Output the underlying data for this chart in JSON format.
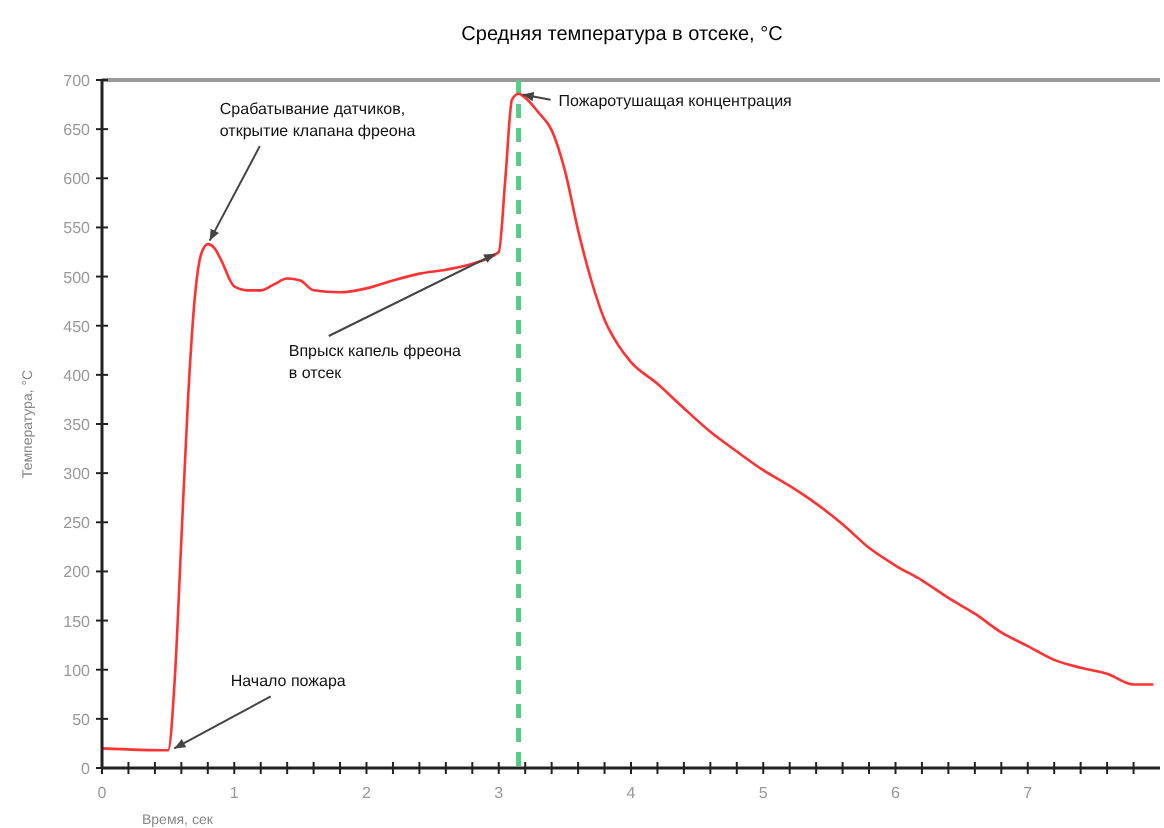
{
  "chart_data": {
    "type": "line",
    "title": "Средняя температура в отсеке, °C",
    "xlabel": "Время, сек",
    "ylabel": "Температура, °C",
    "x": [
      0,
      0.5,
      0.55,
      0.6,
      0.65,
      0.7,
      0.75,
      0.8,
      0.85,
      0.9,
      1.0,
      1.1,
      1.2,
      1.3,
      1.4,
      1.5,
      1.6,
      1.8,
      2.0,
      2.2,
      2.4,
      2.6,
      2.8,
      3.0,
      3.05,
      3.1,
      3.15,
      3.2,
      3.3,
      3.4,
      3.5,
      3.6,
      3.7,
      3.8,
      3.9,
      4.0,
      4.2,
      4.4,
      4.6,
      4.8,
      5.0,
      5.2,
      5.4,
      5.6,
      5.8,
      6.0,
      6.2,
      6.4,
      6.6,
      6.8,
      7.0,
      7.2,
      7.4,
      7.6,
      7.8,
      7.95
    ],
    "series": [
      {
        "color": "#ff3333",
        "values": [
          20,
          18,
          90,
          232,
          374,
          476,
          523,
          533,
          529,
          517,
          490,
          486,
          486,
          492,
          498,
          496,
          486,
          484,
          488,
          496,
          503,
          507,
          513,
          525,
          600,
          680,
          686,
          682,
          667,
          649,
          608,
          547,
          496,
          456,
          431,
          413,
          391,
          366,
          342,
          322,
          303,
          287,
          269,
          248,
          224,
          206,
          191,
          173,
          157,
          138,
          124,
          110,
          102,
          96,
          85,
          85
        ]
      }
    ],
    "xlim": [
      0,
      8
    ],
    "ylim": [
      0,
      700
    ],
    "xticks": [
      0,
      {
        "value": 0.2,
        "label": null
      },
      {
        "value": 0.4,
        "label": null
      },
      {
        "value": 0.6,
        "label": null
      },
      {
        "value": 0.8,
        "label": null
      },
      1,
      {
        "value": 1.2,
        "label": null
      },
      {
        "value": 1.4,
        "label": null
      },
      {
        "value": 1.6,
        "label": null
      },
      {
        "value": 1.8,
        "label": null
      },
      2,
      {
        "value": 2.2,
        "label": null
      },
      {
        "value": 2.4,
        "label": null
      },
      {
        "value": 2.6,
        "label": null
      },
      {
        "value": 2.8,
        "label": null
      },
      3,
      {
        "value": 3.2,
        "label": null
      },
      {
        "value": 3.4,
        "label": null
      },
      {
        "value": 3.6,
        "label": null
      },
      {
        "value": 3.8,
        "label": null
      },
      4,
      {
        "value": 4.2,
        "label": null
      },
      {
        "value": 4.4,
        "label": null
      },
      {
        "value": 4.6,
        "label": null
      },
      {
        "value": 4.8,
        "label": null
      },
      5,
      {
        "value": 5.2,
        "label": null
      },
      {
        "value": 5.4,
        "label": null
      },
      {
        "value": 5.6,
        "label": null
      },
      {
        "value": 5.8,
        "label": null
      },
      6,
      {
        "value": 6.2,
        "label": null
      },
      {
        "value": 6.4,
        "label": null
      },
      {
        "value": 6.6,
        "label": null
      },
      {
        "value": 6.8,
        "label": null
      },
      7,
      {
        "value": 7.2,
        "label": null
      },
      {
        "value": 7.4,
        "label": null
      },
      {
        "value": 7.6,
        "label": null
      },
      {
        "value": 7.8,
        "label": null
      }
    ],
    "yticks": [
      0,
      50,
      100,
      150,
      200,
      250,
      300,
      350,
      400,
      450,
      500,
      550,
      600,
      650,
      700
    ],
    "ref_lines": [
      {
        "axis": "x",
        "value": 3.15,
        "color": "#55cc88",
        "line_style": "dashed"
      }
    ],
    "annotations": [
      {
        "text": "Срабатывание датчиков,\nоткрытие клапана фреона",
        "x": 0.8,
        "y": 533
      },
      {
        "text": "Впрыск капель фреона\nв отсек",
        "x": 3.0,
        "y": 525
      },
      {
        "text": "Пожаротушащая концентрация",
        "x": 3.15,
        "y": 686
      },
      {
        "text": "Начало пожара",
        "x": 0.52,
        "y": 18
      }
    ],
    "grid": false,
    "marker": "none",
    "line_style": "solid"
  }
}
